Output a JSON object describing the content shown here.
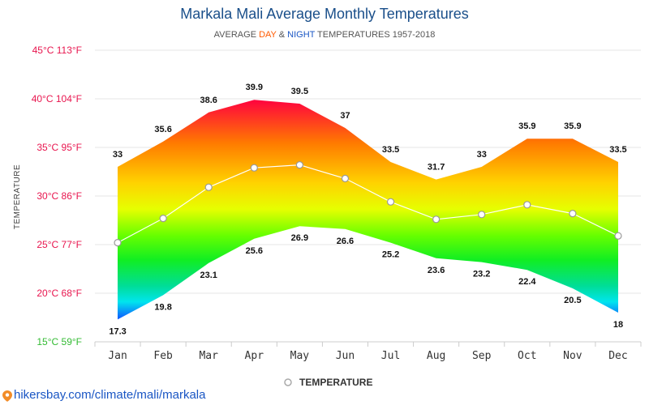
{
  "chart_data": {
    "type": "area",
    "title": "Markala Mali Average Monthly Temperatures",
    "subtitle": {
      "prefix": "AVERAGE ",
      "day": "DAY",
      "amp": " & ",
      "night": "NIGHT",
      "suffix": " TEMPERATURES 1957-2018"
    },
    "ylabel": "TEMPERATURE",
    "ylim": [
      15,
      45
    ],
    "y_ticks": [
      15,
      20,
      25,
      30,
      35,
      40,
      45
    ],
    "y_tick_labels": [
      "15°C 59°F",
      "20°C 68°F",
      "25°C 77°F",
      "30°C 86°F",
      "35°C 95°F",
      "40°C 104°F",
      "45°C 113°F"
    ],
    "categories": [
      "Jan",
      "Feb",
      "Mar",
      "Apr",
      "May",
      "Jun",
      "Jul",
      "Aug",
      "Sep",
      "Oct",
      "Nov",
      "Dec"
    ],
    "series": [
      {
        "values": [
          33,
          35.6,
          38.6,
          39.9,
          39.5,
          37,
          33.5,
          31.7,
          33,
          35.9,
          35.9,
          33.5
        ]
      },
      {
        "values": [
          17.3,
          19.8,
          23.1,
          25.6,
          26.9,
          26.6,
          25.2,
          23.6,
          23.2,
          22.4,
          20.5,
          18
        ]
      },
      {
        "name": "TEMPERATURE",
        "values": [
          25.2,
          27.7,
          30.9,
          32.9,
          33.2,
          31.8,
          29.4,
          27.6,
          28.1,
          29.1,
          28.2,
          25.9
        ]
      }
    ],
    "day_labels": [
      "33",
      "35.6",
      "38.6",
      "39.9",
      "39.5",
      "37",
      "33.5",
      "31.7",
      "33",
      "35.9",
      "35.9",
      "33.5"
    ],
    "night_labels": [
      "17.3",
      "19.8",
      "23.1",
      "25.6",
      "26.9",
      "26.6",
      "25.2",
      "23.6",
      "23.2",
      "22.4",
      "20.5",
      "18"
    ],
    "legend": {
      "label": "TEMPERATURE",
      "position": "bottom-center"
    },
    "grid": true,
    "colors": {
      "title": "#1a4f8a",
      "day": "#ff5a00",
      "night": "#1a56c4",
      "tick_red": "#e8154e",
      "tick_green": "#33bb33",
      "gradient": [
        "#ff0040",
        "#ffee00",
        "#22ff00",
        "#00eeee",
        "#0044ff"
      ]
    }
  },
  "source_link": "hikersbay.com/climate/mali/markala"
}
